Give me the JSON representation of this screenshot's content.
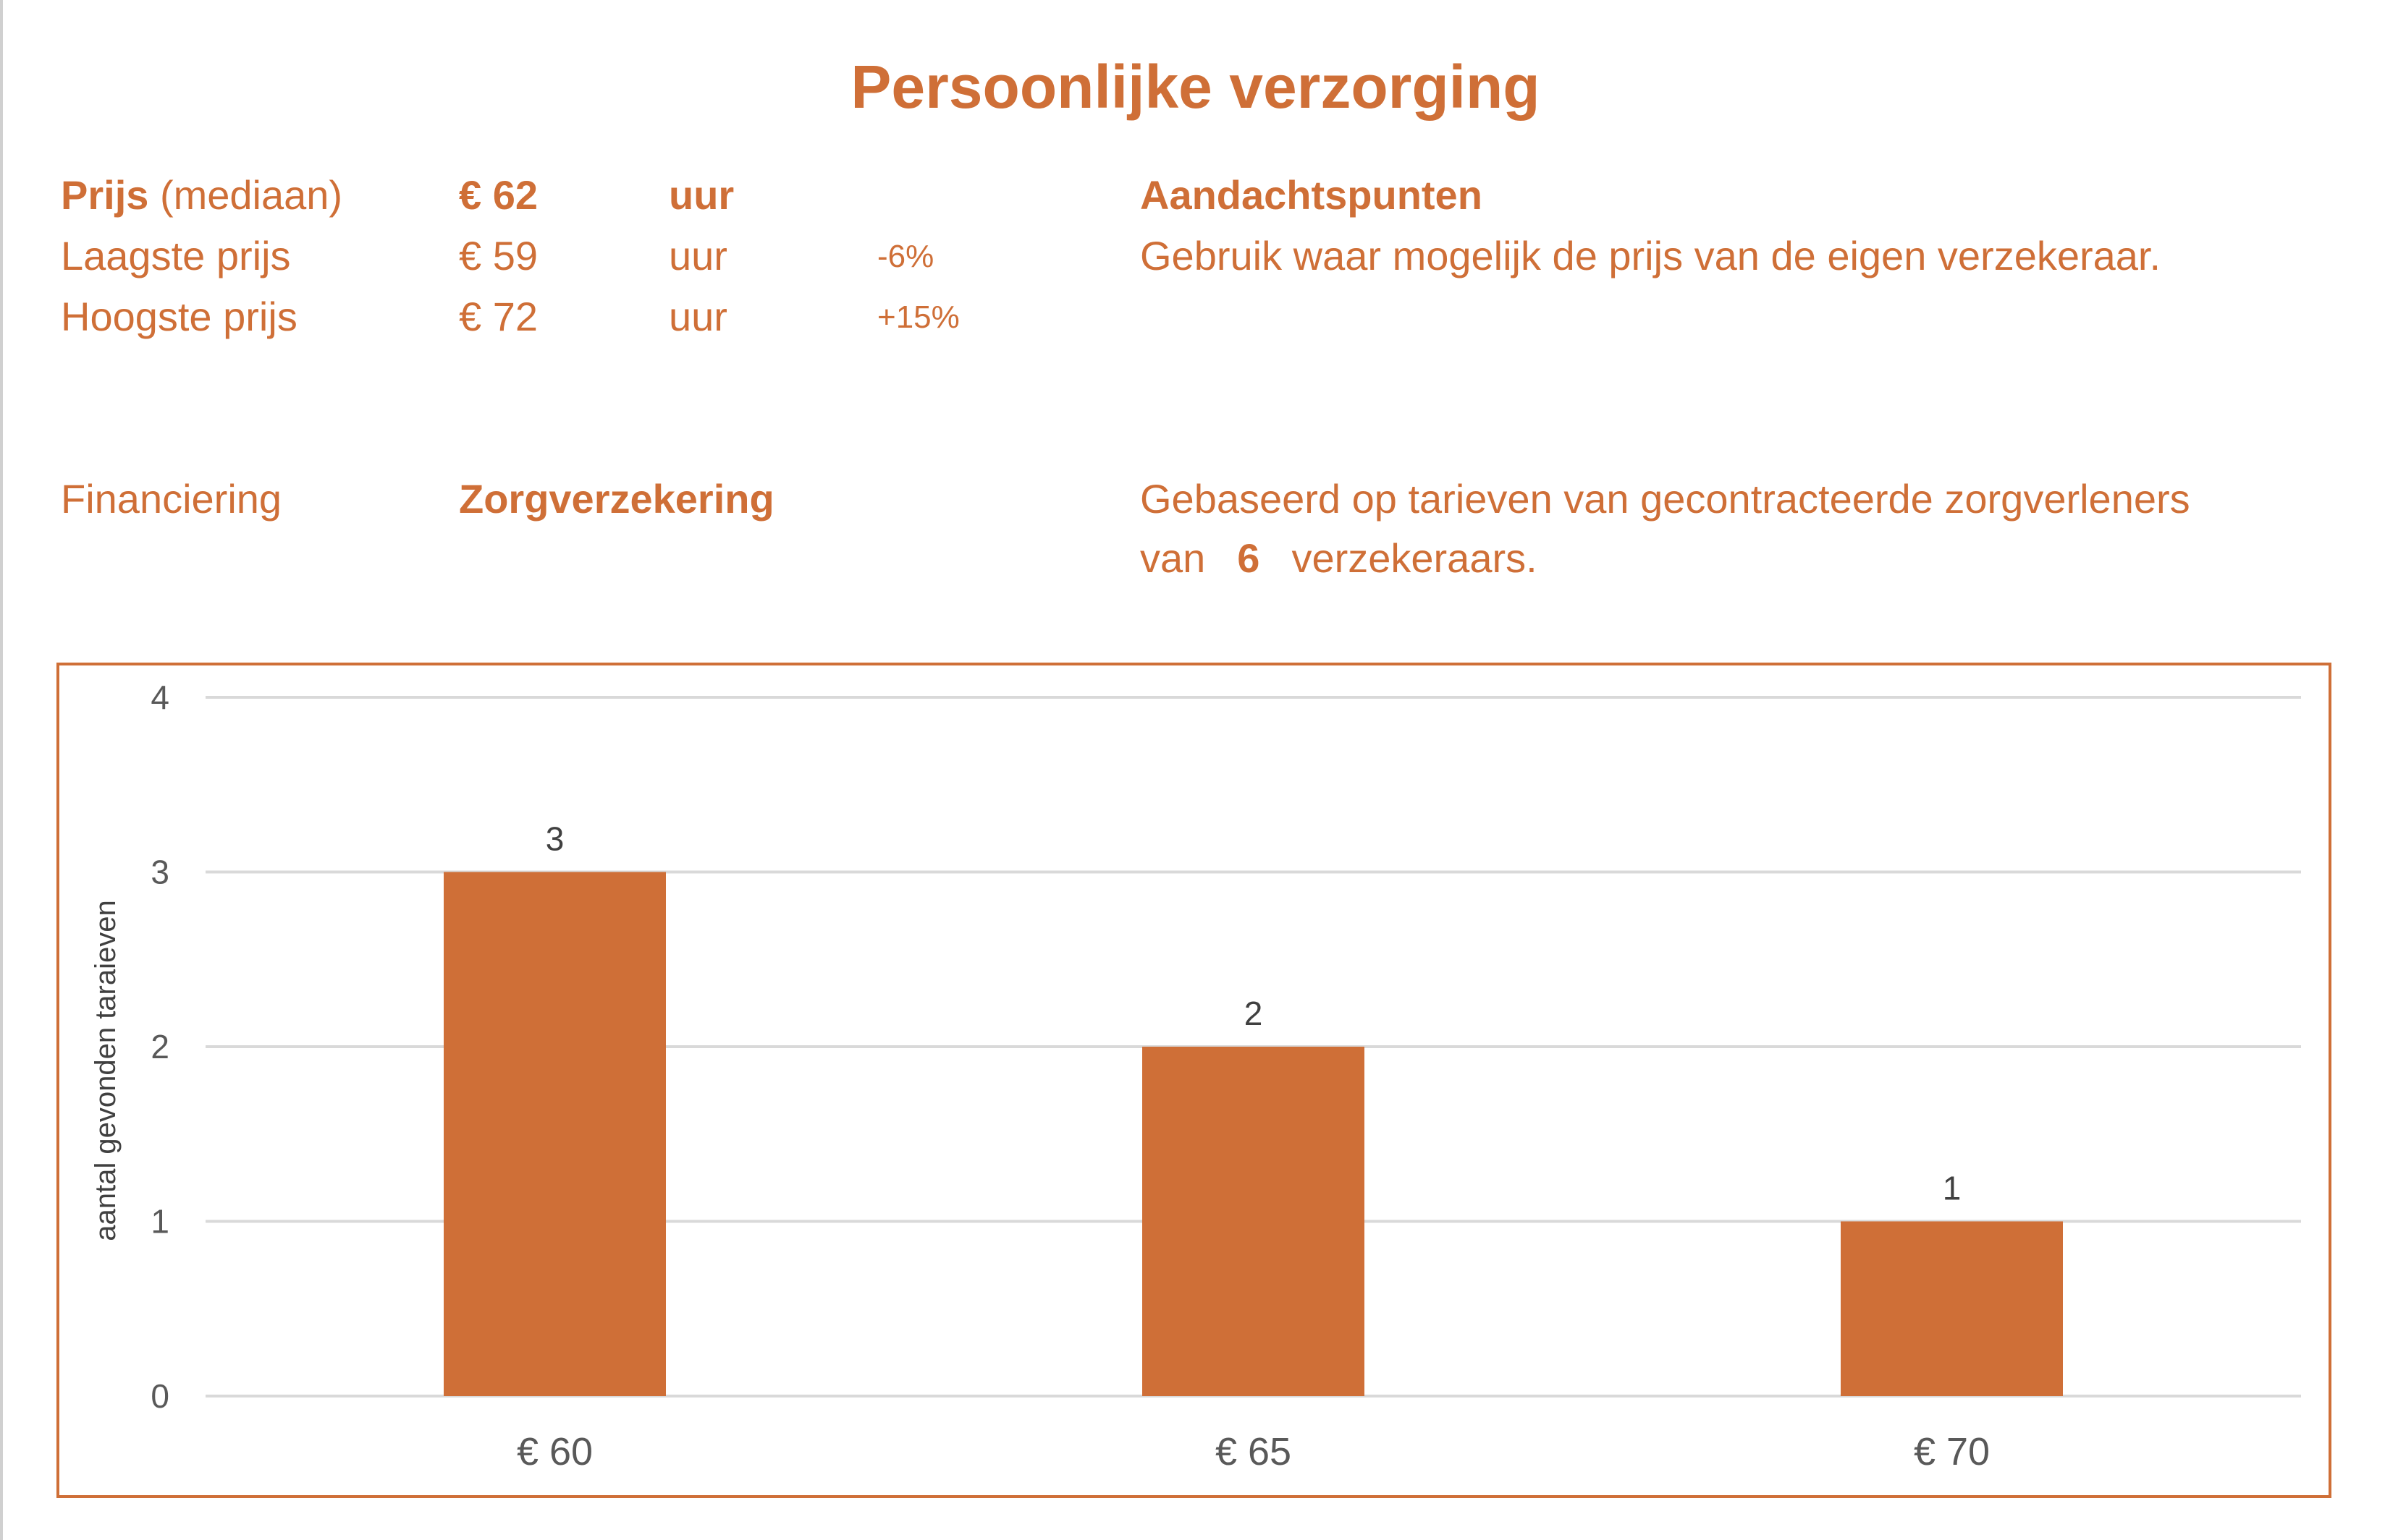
{
  "title": "Persoonlijke verzorging",
  "prices": {
    "median": {
      "label_bold": "Prijs",
      "label_rest": "(mediaan)",
      "value": "€ 62",
      "unit": "uur"
    },
    "lowest": {
      "label": "Laagste prijs",
      "value": "€ 59",
      "unit": "uur",
      "diff": "-6%"
    },
    "highest": {
      "label": "Hoogste prijs",
      "value": "€ 72",
      "unit": "uur",
      "diff": "+15%"
    }
  },
  "attention": {
    "heading": "Aandachtspunten",
    "text": "Gebruik waar mogelijk de prijs van de eigen verzekeraar."
  },
  "financing": {
    "label": "Financiering",
    "value": "Zorgverzekering"
  },
  "basis": {
    "line1": "Gebaseerd op tarieven van gecontracteerde zorgverleners",
    "pre": "van",
    "count": "6",
    "post": "verzekeraars."
  },
  "colors": {
    "accent": "#CF6F37",
    "axis_text": "#595959",
    "grid": "#D9D9D9"
  },
  "chart_data": {
    "type": "bar",
    "categories": [
      "€ 60",
      "€ 65",
      "€ 70"
    ],
    "values": [
      3,
      2,
      1
    ],
    "data_labels": [
      "3",
      "2",
      "1"
    ],
    "title": "",
    "xlabel": "",
    "ylabel": "aantal gevonden taraieven",
    "ylim": [
      0,
      4
    ],
    "yticks": [
      "0",
      "1",
      "2",
      "3",
      "4"
    ],
    "grid": true,
    "legend": "none"
  }
}
